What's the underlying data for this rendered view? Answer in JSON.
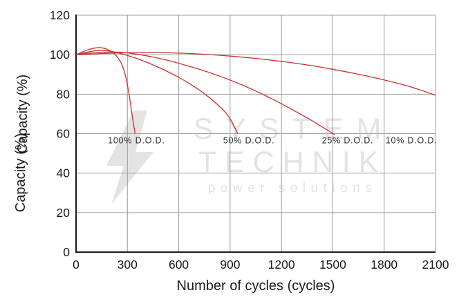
{
  "chart_data": {
    "type": "line",
    "title": "",
    "xlabel": "Number of cycles (cycles)",
    "ylabel": "Capacity (%)",
    "xlim": [
      0,
      2100
    ],
    "ylim": [
      0,
      120
    ],
    "xticks": [
      0,
      300,
      600,
      900,
      1200,
      1500,
      1800,
      2100
    ],
    "yticks": [
      0,
      20,
      40,
      60,
      80,
      100,
      120
    ],
    "grid": true,
    "legend_position": "none",
    "line_color": "#c9302c",
    "axis_color": "#1a1a1a",
    "grid_color": "#9c9c9c",
    "series": [
      {
        "name": "100% D.O.D.",
        "points": [
          [
            0,
            100
          ],
          [
            40,
            101.5
          ],
          [
            80,
            102.8
          ],
          [
            120,
            103.5
          ],
          [
            150,
            103.5
          ],
          [
            180,
            102.8
          ],
          [
            210,
            101.3
          ],
          [
            240,
            99
          ],
          [
            270,
            94.5
          ],
          [
            295,
            87
          ],
          [
            315,
            77
          ],
          [
            330,
            68
          ],
          [
            345,
            60
          ]
        ]
      },
      {
        "name": "50% D.O.D.",
        "points": [
          [
            0,
            100
          ],
          [
            60,
            101.2
          ],
          [
            120,
            102
          ],
          [
            180,
            102
          ],
          [
            250,
            100.8
          ],
          [
            350,
            98.2
          ],
          [
            450,
            94.8
          ],
          [
            550,
            90.8
          ],
          [
            650,
            86
          ],
          [
            750,
            80.2
          ],
          [
            850,
            72.8
          ],
          [
            900,
            67.5
          ],
          [
            945,
            60
          ]
        ]
      },
      {
        "name": "25% D.O.D.",
        "points": [
          [
            0,
            100
          ],
          [
            80,
            100.8
          ],
          [
            160,
            101.3
          ],
          [
            250,
            101.3
          ],
          [
            350,
            100.3
          ],
          [
            450,
            98.8
          ],
          [
            550,
            96.8
          ],
          [
            650,
            94.4
          ],
          [
            750,
            91.8
          ],
          [
            850,
            88.8
          ],
          [
            950,
            85.4
          ],
          [
            1050,
            81.6
          ],
          [
            1150,
            77.4
          ],
          [
            1250,
            72.8
          ],
          [
            1350,
            68
          ],
          [
            1450,
            62.8
          ],
          [
            1510,
            59.5
          ]
        ]
      },
      {
        "name": "10% D.O.D.",
        "points": [
          [
            0,
            100
          ],
          [
            150,
            100.6
          ],
          [
            300,
            101
          ],
          [
            450,
            101.1
          ],
          [
            600,
            100.8
          ],
          [
            750,
            100.2
          ],
          [
            900,
            99.3
          ],
          [
            1050,
            98.1
          ],
          [
            1200,
            96.6
          ],
          [
            1350,
            94.8
          ],
          [
            1500,
            92.6
          ],
          [
            1650,
            90.1
          ],
          [
            1800,
            87.2
          ],
          [
            1950,
            83.8
          ],
          [
            2100,
            79.5
          ]
        ]
      }
    ],
    "annotations": [
      {
        "text": "100% D.O.D.",
        "x": 353,
        "y": 56.5
      },
      {
        "text": "50% D.O.D.",
        "x": 1010,
        "y": 56.5
      },
      {
        "text": "25% D.O.D.",
        "x": 1587,
        "y": 56.5
      },
      {
        "text": "10% D.O.D.",
        "x": 1959,
        "y": 56.5
      }
    ]
  },
  "watermark": {
    "line1": "SYSTEM",
    "line2": "TECHNIK",
    "line3": "power solutions",
    "color": "#e3e3e3"
  }
}
